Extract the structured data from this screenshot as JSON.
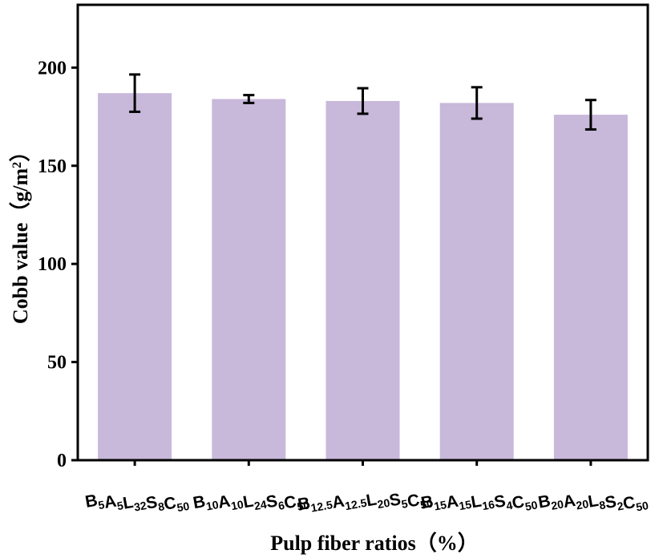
{
  "chart_data": {
    "type": "bar",
    "categories": [
      {
        "parts": [
          [
            "B",
            "5"
          ],
          [
            "A",
            "5"
          ],
          [
            "L",
            "32"
          ],
          [
            "S",
            "8"
          ],
          [
            "C",
            "50"
          ]
        ]
      },
      {
        "parts": [
          [
            "B",
            "10"
          ],
          [
            "A",
            "10"
          ],
          [
            "L",
            "24"
          ],
          [
            "S",
            "6"
          ],
          [
            "C",
            "50"
          ]
        ]
      },
      {
        "parts": [
          [
            "B",
            "12.5"
          ],
          [
            "A",
            "12.5"
          ],
          [
            "L",
            "20"
          ],
          [
            "S",
            "5"
          ],
          [
            "C",
            "50"
          ]
        ]
      },
      {
        "parts": [
          [
            "B",
            "15"
          ],
          [
            "A",
            "15"
          ],
          [
            "L",
            "16"
          ],
          [
            "S",
            "4"
          ],
          [
            "C",
            "50"
          ]
        ]
      },
      {
        "parts": [
          [
            "B",
            "20"
          ],
          [
            "A",
            "20"
          ],
          [
            "L",
            "8"
          ],
          [
            "S",
            "2"
          ],
          [
            "C",
            "50"
          ]
        ]
      }
    ],
    "values": [
      187,
      184,
      183,
      182,
      176
    ],
    "errors": [
      9.5,
      2,
      6.5,
      8,
      7.5
    ],
    "xlabel": "Pulp fiber ratios（%）",
    "ylabel_main": "Cobb value（g/m",
    "ylabel_sup": "2",
    "ylabel_end": "）",
    "ylim": [
      0,
      232
    ],
    "yticks": [
      0,
      50,
      100,
      150,
      200
    ],
    "bar_color": "#c8b8da",
    "grid": false
  }
}
